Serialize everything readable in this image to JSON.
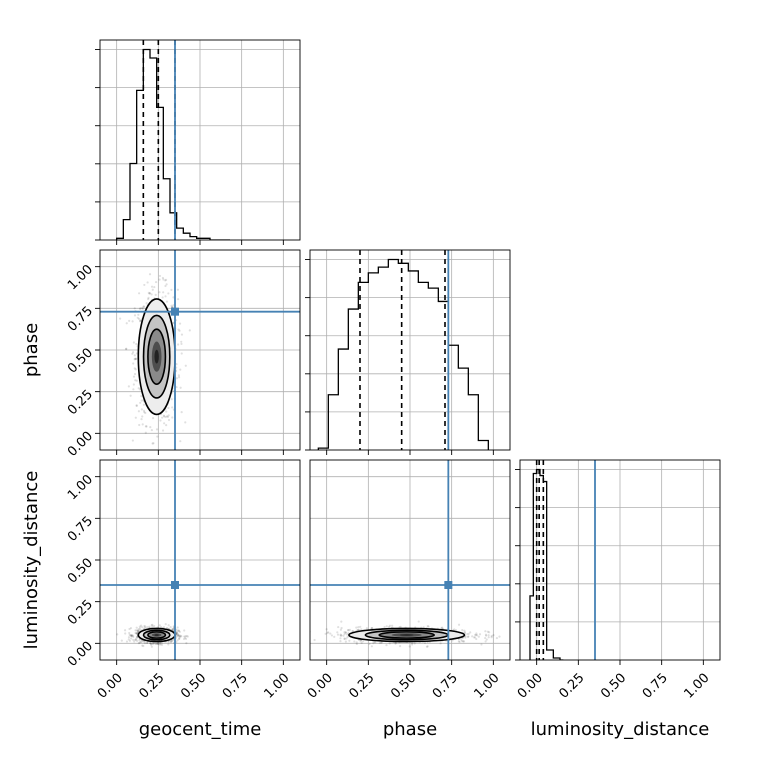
{
  "chart_data": {
    "type": "corner",
    "parameters": [
      "geocent_time",
      "phase",
      "luminosity_distance"
    ],
    "axis_range": [
      -0.1,
      1.1
    ],
    "tick_values": [
      0.0,
      0.25,
      0.5,
      0.75,
      1.0
    ],
    "tick_labels": [
      "0.00",
      "0.25",
      "0.50",
      "0.75",
      "1.00"
    ],
    "grid": true,
    "colors": {
      "truth": "#4682b4",
      "hist": "#000000",
      "grid": "#b0b0b0"
    },
    "truths": {
      "geocent_time": 0.35,
      "phase": 0.73,
      "luminosity_distance": 0.35
    },
    "quantiles": {
      "geocent_time": [
        0.16,
        0.25,
        0.35
      ],
      "phase": [
        0.2,
        0.45,
        0.71
      ],
      "luminosity_distance": [
        0.0,
        0.015,
        0.04
      ]
    },
    "histograms": {
      "geocent_time": {
        "bin_edges": [
          0.0,
          0.04,
          0.08,
          0.12,
          0.16,
          0.2,
          0.24,
          0.28,
          0.32,
          0.36,
          0.4,
          0.44,
          0.48,
          0.52,
          0.56,
          0.6,
          0.64,
          0.68
        ],
        "counts": [
          1,
          12,
          45,
          88,
          112,
          107,
          78,
          36,
          16,
          7,
          4,
          2,
          1,
          1,
          0,
          0,
          0
        ]
      },
      "phase": {
        "bin_edges": [
          -0.05,
          0.01,
          0.07,
          0.13,
          0.19,
          0.25,
          0.31,
          0.37,
          0.43,
          0.49,
          0.55,
          0.61,
          0.67,
          0.73,
          0.79,
          0.85,
          0.91,
          0.97
        ],
        "counts": [
          1,
          29,
          53,
          74,
          88,
          93,
          96,
          100,
          98,
          94,
          88,
          85,
          78,
          55,
          43,
          29,
          5
        ]
      },
      "luminosity_distance": {
        "bin_edges": [
          -0.04,
          -0.02,
          0.0,
          0.02,
          0.04,
          0.06,
          0.08,
          0.1,
          0.12,
          0.14,
          0.16
        ],
        "counts": [
          32,
          93,
          95,
          92,
          89,
          5,
          5,
          1,
          1,
          0
        ]
      }
    },
    "panels": [
      {
        "row": "phase",
        "col": "geocent_time",
        "center": [
          0.24,
          0.46
        ],
        "spread": [
          0.07,
          0.22
        ]
      },
      {
        "row": "luminosity_distance",
        "col": "geocent_time",
        "center": [
          0.24,
          0.05
        ],
        "spread": [
          0.07,
          0.025
        ]
      },
      {
        "row": "luminosity_distance",
        "col": "phase",
        "center": [
          0.48,
          0.05
        ],
        "spread": [
          0.22,
          0.025
        ]
      }
    ]
  }
}
